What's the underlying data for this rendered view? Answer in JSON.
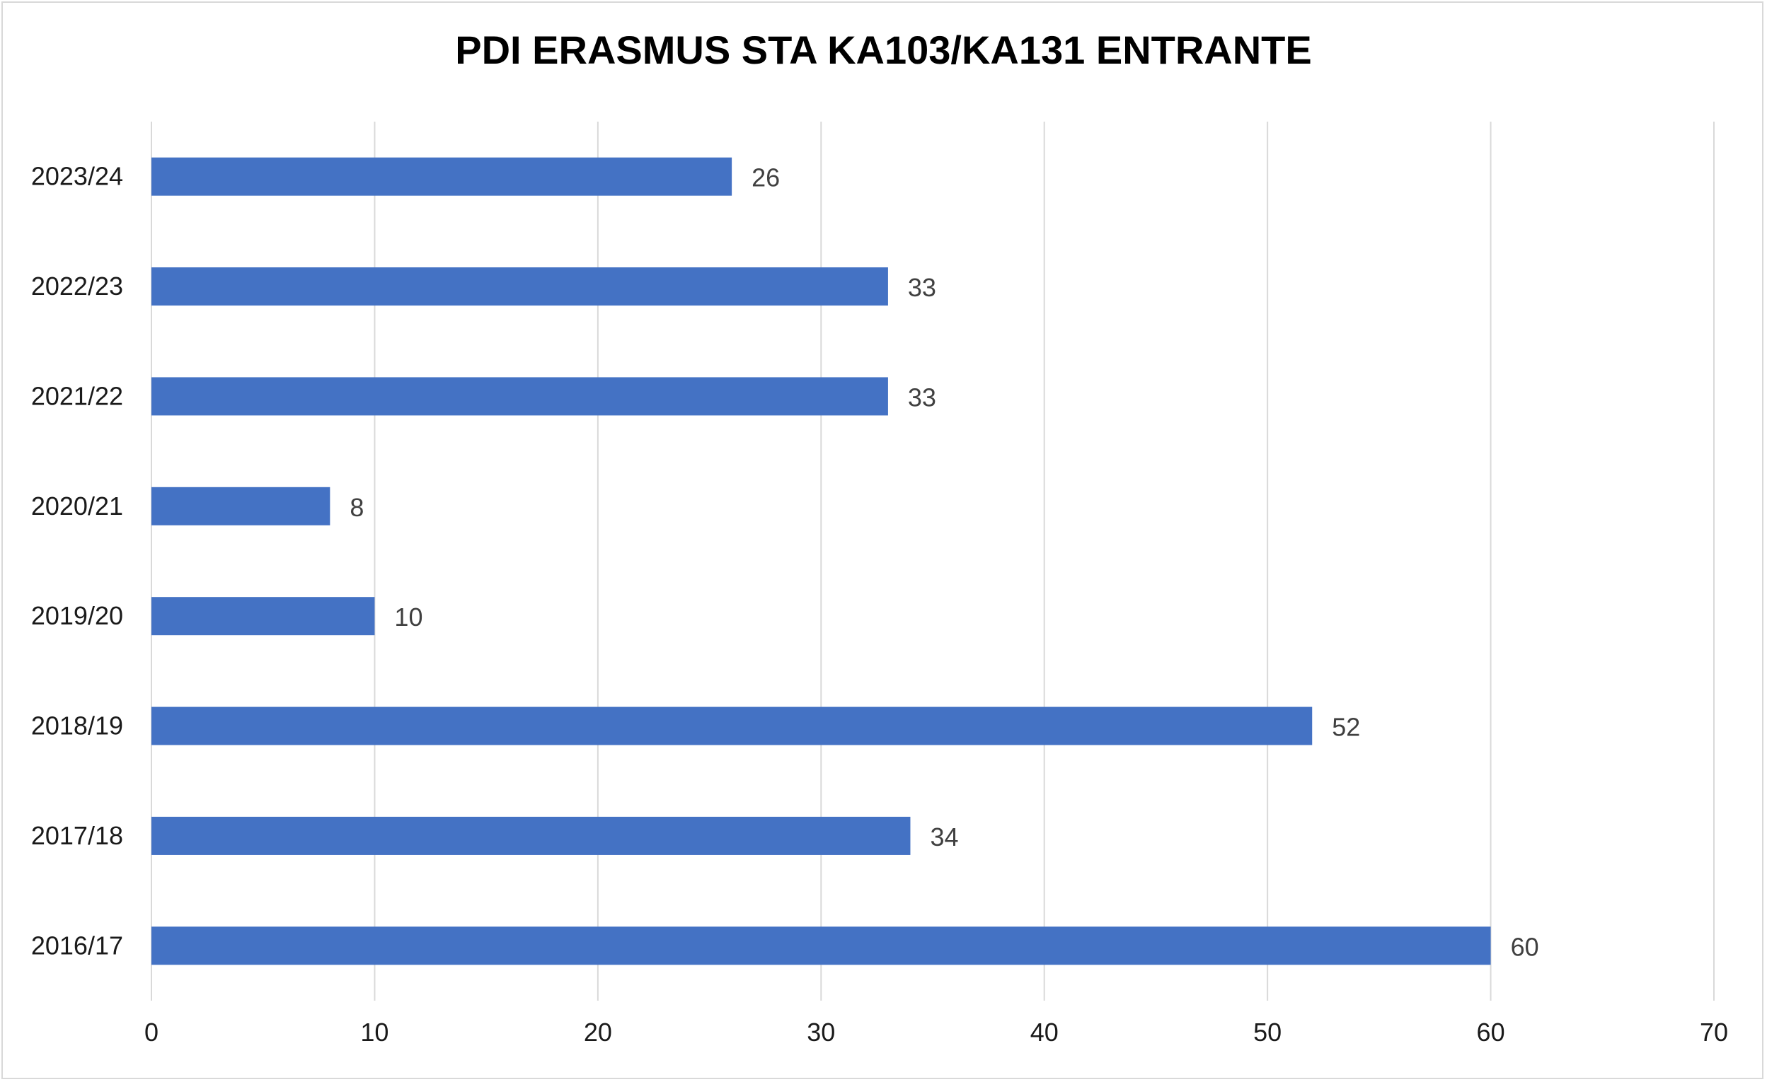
{
  "chart_data": {
    "type": "bar",
    "orientation": "horizontal",
    "title": "PDI ERASMUS STA KA103/KA131  ENTRANTE",
    "categories": [
      "2023/24",
      "2022/23",
      "2021/22",
      "2020/21",
      "2019/20",
      "2018/19",
      "2017/18",
      "2016/17"
    ],
    "values": [
      26,
      33,
      33,
      8,
      10,
      52,
      34,
      60
    ],
    "data_labels": [
      "26",
      "33",
      "33",
      "8",
      "10",
      "52",
      "34",
      "60"
    ],
    "xlim": [
      0,
      70
    ],
    "xticks": [
      "0",
      "10",
      "20",
      "30",
      "40",
      "50",
      "60",
      "70"
    ],
    "grid": true,
    "legend": "none",
    "bar_color": "#4472c4"
  }
}
